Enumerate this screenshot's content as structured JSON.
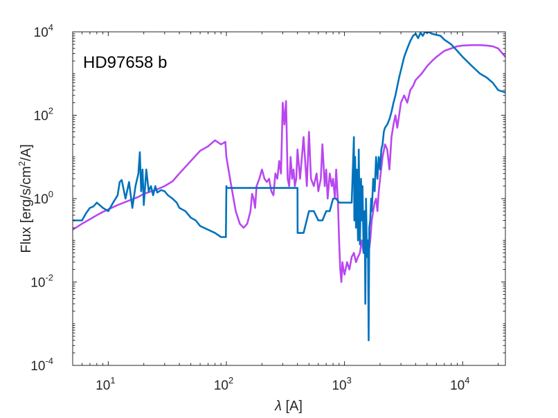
{
  "chart_data": {
    "type": "line",
    "title": "",
    "annotation": "HD97658 b",
    "xlabel": {
      "symbol": "λ",
      "unit": " [A]"
    },
    "ylabel": {
      "prefix": "Flux [erg/s/cm",
      "sup": "2",
      "suffix": "/A]"
    },
    "xscale": "log",
    "yscale": "log",
    "xlim": [
      5,
      23000
    ],
    "ylim": [
      0.0001,
      10000
    ],
    "x_ticks": [
      {
        "value": 10,
        "base": "10",
        "exp": "1"
      },
      {
        "value": 100,
        "base": "10",
        "exp": "2"
      },
      {
        "value": 1000,
        "base": "10",
        "exp": "3"
      },
      {
        "value": 10000,
        "base": "10",
        "exp": "4"
      }
    ],
    "y_ticks": [
      {
        "value": 0.0001,
        "base": "10",
        "exp": "-4"
      },
      {
        "value": 0.01,
        "base": "10",
        "exp": "-2"
      },
      {
        "value": 1,
        "base": "10",
        "exp": "0"
      },
      {
        "value": 100,
        "base": "10",
        "exp": "2"
      },
      {
        "value": 10000,
        "base": "10",
        "exp": "4"
      }
    ],
    "grid": false,
    "colors": {
      "series_blue": "#0072bd",
      "series_purple": "#b847f0",
      "axis": "#262626"
    },
    "series": [
      {
        "color": "#b847f0",
        "x": [
          5,
          6,
          7,
          8,
          9,
          10,
          12,
          15,
          18,
          20,
          25,
          30,
          35,
          40,
          50,
          60,
          70,
          80,
          90,
          98,
          100,
          110,
          120,
          130,
          140,
          150,
          160,
          165,
          170,
          175,
          180,
          190,
          200,
          210,
          220,
          230,
          240,
          250,
          260,
          270,
          280,
          290,
          300,
          310,
          320,
          330,
          340,
          350,
          360,
          370,
          380,
          390,
          400,
          420,
          450,
          480,
          500,
          520,
          550,
          580,
          600,
          630,
          650,
          680,
          700,
          720,
          750,
          780,
          800,
          830,
          850,
          880,
          900,
          920,
          940,
          960,
          980,
          1000,
          1050,
          1100,
          1150,
          1200,
          1250,
          1300,
          1350,
          1400,
          1450,
          1500,
          1550,
          1600,
          1650,
          1700,
          1750,
          1800,
          1850,
          1900,
          1950,
          2000,
          2100,
          2200,
          2300,
          2400,
          2500,
          2600,
          2700,
          2800,
          2900,
          3000,
          3200,
          3400,
          3600,
          3800,
          4000,
          4500,
          5000,
          5500,
          6000,
          7000,
          8000,
          9000,
          10000,
          12000,
          14000,
          16000,
          18000,
          20000,
          23000
        ],
        "y": [
          0.18,
          0.25,
          0.32,
          0.4,
          0.48,
          0.55,
          0.7,
          0.9,
          1.1,
          1.3,
          1.6,
          2.0,
          2.6,
          4.0,
          8.0,
          14.0,
          18.0,
          25.0,
          20.0,
          23.0,
          10.0,
          2.0,
          0.5,
          0.25,
          0.2,
          0.25,
          0.5,
          1.3,
          1.0,
          0.6,
          2.0,
          3.0,
          5.0,
          3.0,
          2.5,
          3.0,
          1.5,
          1.2,
          4.0,
          3.0,
          8.0,
          4.0,
          200.0,
          60.0,
          220.0,
          3.0,
          2.0,
          10.0,
          3.0,
          5.0,
          2.0,
          3.0,
          15.0,
          3.0,
          30.0,
          2.0,
          40.0,
          3.0,
          2.0,
          4.0,
          1.5,
          3.0,
          20.0,
          2.0,
          5.0,
          1.0,
          4.0,
          2.0,
          3.0,
          1.0,
          5.0,
          0.8,
          0.1,
          0.02,
          0.01,
          0.03,
          0.02,
          0.015,
          0.03,
          0.02,
          0.04,
          0.05,
          0.03,
          0.04,
          0.05,
          0.1,
          0.05,
          0.08,
          0.06,
          0.05,
          0.1,
          0.3,
          0.5,
          0.8,
          1.0,
          0.5,
          1.5,
          3.0,
          10.0,
          20.0,
          15.0,
          5.0,
          30.0,
          60.0,
          100.0,
          50.0,
          100.0,
          200.0,
          300.0,
          200.0,
          400.0,
          500.0,
          700.0,
          1000.0,
          1500.0,
          2000.0,
          2500.0,
          3500.0,
          4000.0,
          4500.0,
          4700.0,
          4800.0,
          4800.0,
          4700.0,
          4500.0,
          4000.0,
          2500.0
        ]
      },
      {
        "color": "#0072bd",
        "x": [
          5,
          6,
          6.5,
          7,
          7.5,
          8,
          9,
          10,
          11,
          12,
          12.5,
          13,
          14,
          15,
          16,
          17,
          18,
          18.5,
          19,
          19.5,
          20,
          21,
          22,
          23,
          24,
          25,
          26,
          28,
          30,
          32,
          35,
          38,
          40,
          45,
          50,
          55,
          60,
          70,
          80,
          90,
          95,
          99,
          100,
          101,
          150,
          200,
          210,
          250,
          300,
          350,
          380,
          400,
          401,
          420,
          450,
          500,
          550,
          600,
          650,
          700,
          750,
          800,
          850,
          900,
          950,
          1000,
          1100,
          1150,
          1200,
          1210,
          1230,
          1250,
          1270,
          1300,
          1320,
          1350,
          1380,
          1400,
          1420,
          1450,
          1480,
          1500,
          1520,
          1550,
          1580,
          1600,
          1620,
          1650,
          1680,
          1700,
          1750,
          1800,
          1850,
          1900,
          1950,
          2000,
          2050,
          2100,
          2150,
          2200,
          2300,
          2400,
          2500,
          2600,
          2700,
          2800,
          2900,
          3000,
          3200,
          3400,
          3600,
          3800,
          4000,
          4200,
          4400,
          4600,
          4800,
          5000,
          5200,
          5500,
          6000,
          6500,
          7000,
          8000,
          9000,
          10000,
          12000,
          14000,
          16000,
          18000,
          20000,
          23000
        ],
        "y": [
          0.3,
          0.3,
          0.45,
          0.6,
          0.65,
          0.8,
          0.6,
          0.5,
          0.8,
          1.2,
          2.5,
          2.8,
          1.0,
          2.5,
          0.6,
          2.0,
          4.0,
          13.0,
          1.5,
          5.0,
          0.7,
          5.0,
          1.5,
          2.0,
          1.2,
          2.0,
          1.4,
          1.6,
          1.5,
          1.2,
          1.0,
          0.8,
          0.6,
          0.5,
          0.35,
          0.3,
          0.22,
          0.18,
          0.15,
          0.12,
          0.12,
          0.12,
          2.0,
          1.8,
          1.8,
          1.8,
          1.8,
          1.8,
          1.8,
          1.8,
          1.8,
          1.8,
          0.15,
          0.15,
          0.15,
          0.5,
          0.5,
          0.3,
          0.3,
          0.5,
          0.5,
          1.0,
          1.0,
          0.8,
          0.8,
          0.8,
          0.8,
          0.8,
          30.0,
          0.3,
          10.0,
          0.2,
          5.0,
          0.1,
          15.0,
          0.08,
          3.0,
          0.3,
          2.0,
          0.05,
          0.5,
          0.003,
          1.0,
          0.04,
          0.1,
          0.0004,
          0.2,
          0.3,
          1.0,
          0.5,
          3.0,
          1.5,
          10.0,
          3.0,
          10.0,
          5.0,
          15.0,
          20.0,
          40.0,
          50.0,
          60.0,
          80.0,
          120.0,
          200.0,
          300.0,
          500.0,
          800.0,
          1200.0,
          2500.0,
          4000.0,
          6000.0,
          8000.0,
          9000.0,
          7000.0,
          9500.0,
          8000.0,
          10000.0,
          9500.0,
          9800.0,
          9000.0,
          8500.0,
          8000.0,
          6500.0,
          5000.0,
          3500.0,
          2500.0,
          1500.0,
          1000.0,
          800.0,
          600.0,
          400.0,
          350.0
        ]
      }
    ]
  }
}
